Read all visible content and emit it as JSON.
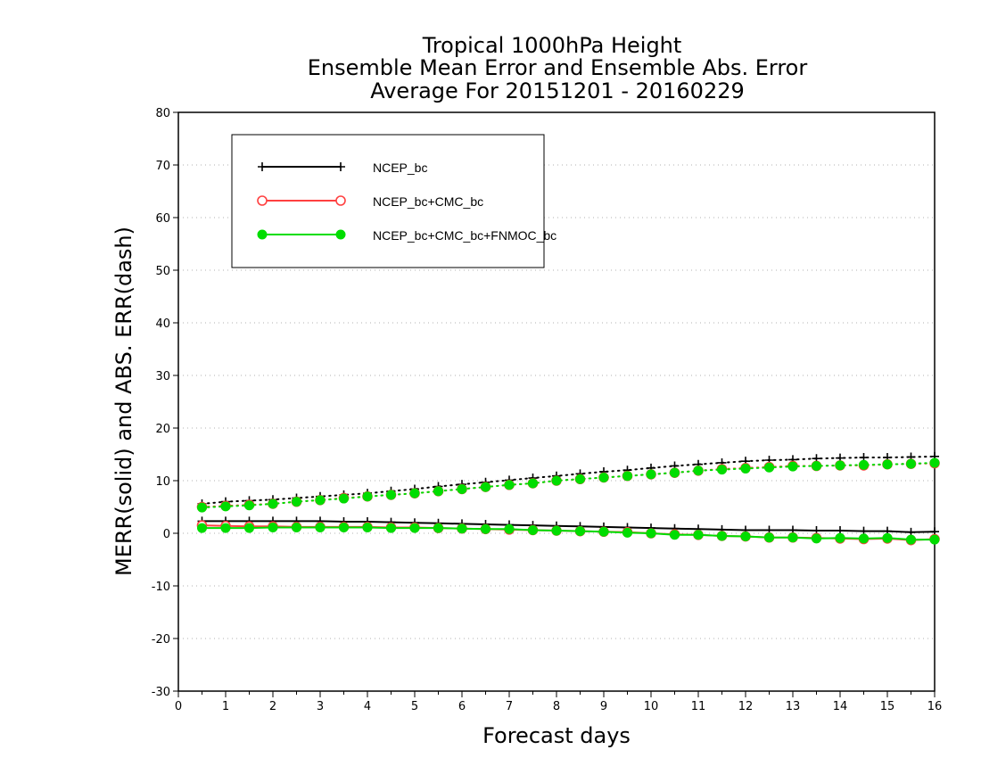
{
  "chart_data": {
    "type": "line",
    "title": [
      "Tropical 1000hPa Height",
      "Ensemble Mean Error and Ensemble Abs. Error",
      "Average For 20151201 - 20160229"
    ],
    "xlabel": "Forecast days",
    "ylabel": "MERR(solid) and ABS. ERR(dash)",
    "xlim": [
      0,
      16
    ],
    "ylim": [
      -30,
      80
    ],
    "xticks": [
      0,
      1,
      2,
      3,
      4,
      5,
      6,
      7,
      8,
      9,
      10,
      11,
      12,
      13,
      14,
      15,
      16
    ],
    "yticks": [
      -30,
      -20,
      -10,
      0,
      10,
      20,
      30,
      40,
      50,
      60,
      70,
      80
    ],
    "grid": "horizontal dotted",
    "legend_position": "top-left",
    "x": [
      0.5,
      1,
      1.5,
      2,
      2.5,
      3,
      3.5,
      4,
      4.5,
      5,
      5.5,
      6,
      6.5,
      7,
      7.5,
      8,
      8.5,
      9,
      9.5,
      10,
      10.5,
      11,
      11.5,
      12,
      12.5,
      13,
      13.5,
      14,
      14.5,
      15,
      15.5,
      16
    ],
    "series": [
      {
        "name": "NCEP_bc",
        "color": "#000000",
        "marker": "plus",
        "merr": [
          2.3,
          2.3,
          2.3,
          2.3,
          2.3,
          2.3,
          2.2,
          2.2,
          2.1,
          2.0,
          1.9,
          1.8,
          1.7,
          1.6,
          1.5,
          1.4,
          1.3,
          1.2,
          1.1,
          1.0,
          0.9,
          0.8,
          0.7,
          0.6,
          0.6,
          0.6,
          0.5,
          0.5,
          0.4,
          0.4,
          0.2,
          0.3
        ],
        "abs_err": [
          5.6,
          6.0,
          6.2,
          6.4,
          6.7,
          7.0,
          7.3,
          7.6,
          8.0,
          8.4,
          8.9,
          9.3,
          9.7,
          10.1,
          10.5,
          10.9,
          11.3,
          11.7,
          12.0,
          12.4,
          12.8,
          13.1,
          13.4,
          13.7,
          13.9,
          14.0,
          14.2,
          14.3,
          14.4,
          14.4,
          14.5,
          14.6
        ]
      },
      {
        "name": "NCEP_bc+CMC_bc",
        "color": "#ff4040",
        "marker": "open-circle",
        "merr": [
          1.5,
          1.4,
          1.3,
          1.3,
          1.2,
          1.2,
          1.2,
          1.2,
          1.1,
          1.1,
          1.0,
          0.9,
          0.8,
          0.7,
          0.6,
          0.5,
          0.4,
          0.3,
          0.2,
          0.0,
          -0.2,
          -0.3,
          -0.5,
          -0.6,
          -0.8,
          -0.8,
          -0.9,
          -1.0,
          -1.1,
          -1.0,
          -1.3,
          -1.1
        ],
        "abs_err": [
          5.0,
          5.2,
          5.4,
          5.6,
          6.0,
          6.3,
          6.7,
          7.0,
          7.3,
          7.6,
          8.0,
          8.4,
          8.8,
          9.2,
          9.5,
          10.0,
          10.3,
          10.6,
          10.9,
          11.2,
          11.5,
          11.9,
          12.2,
          12.4,
          12.6,
          12.8,
          12.8,
          12.9,
          12.9,
          13.1,
          13.2,
          13.3
        ]
      },
      {
        "name": "NCEP_bc+CMC_bc+FNMOC_bc",
        "color": "#00dd00",
        "marker": "filled-circle",
        "merr": [
          1.0,
          1.0,
          1.0,
          1.1,
          1.1,
          1.1,
          1.1,
          1.1,
          1.0,
          1.0,
          1.0,
          0.9,
          0.8,
          0.8,
          0.6,
          0.5,
          0.4,
          0.3,
          0.1,
          0.0,
          -0.3,
          -0.3,
          -0.5,
          -0.6,
          -0.8,
          -0.8,
          -1.0,
          -0.9,
          -1.0,
          -0.9,
          -1.2,
          -1.2
        ],
        "abs_err": [
          4.9,
          5.1,
          5.3,
          5.6,
          6.0,
          6.3,
          6.6,
          7.0,
          7.3,
          7.6,
          8.0,
          8.4,
          8.8,
          9.2,
          9.5,
          10.0,
          10.3,
          10.6,
          10.9,
          11.2,
          11.5,
          11.9,
          12.1,
          12.3,
          12.5,
          12.7,
          12.8,
          12.9,
          13.0,
          13.1,
          13.2,
          13.4
        ]
      }
    ]
  }
}
